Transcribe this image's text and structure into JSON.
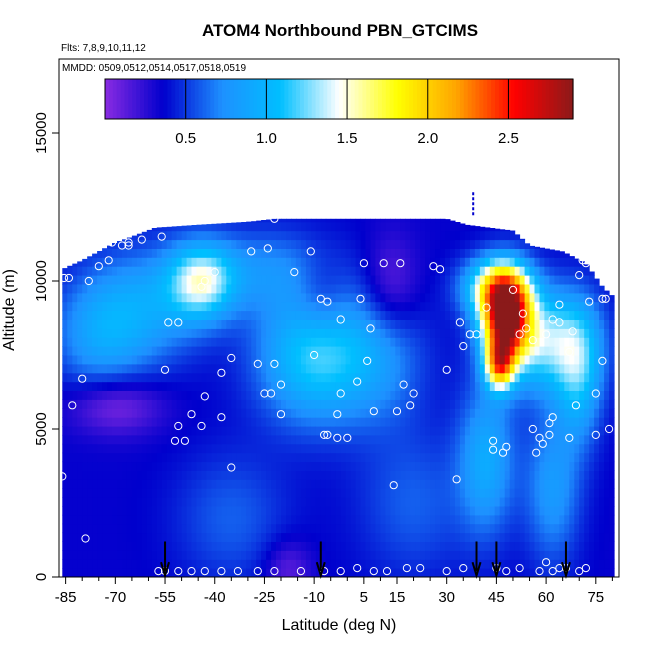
{
  "chart_data": {
    "type": "heatmap",
    "title": "ATOM4 Northbound PBN_GTCIMS",
    "flights_note": "Flts: 7,8,9,10,11,12",
    "dates_note": "MMDD: 0509,0512,0514,0517,0518,0519",
    "xlabel": "Latitude (deg N)",
    "ylabel": "Altitude (m)",
    "xlim": [
      -87,
      82
    ],
    "ylim": [
      0,
      17500
    ],
    "x_ticks": [
      -85,
      -70,
      -55,
      -40,
      -25,
      -10,
      5,
      15,
      30,
      45,
      60,
      75
    ],
    "x_tick_labels": [
      "-85",
      "-70",
      "-55",
      "-40",
      "-25",
      "-10",
      "5",
      "15",
      "30",
      "45",
      "60",
      "75"
    ],
    "x_minor_ticks": [
      -80,
      -75,
      -65,
      -60,
      -50,
      -45,
      -35,
      -30,
      -20,
      -15,
      -5,
      0,
      10,
      20,
      25,
      35,
      40,
      50,
      55,
      65,
      70,
      80
    ],
    "y_ticks": [
      0,
      5000,
      10000,
      15000
    ],
    "y_tick_labels": [
      "0",
      "5000",
      "10000",
      "15000"
    ],
    "colorbar": {
      "min": 0.0,
      "max": 2.9,
      "ticks": [
        0.5,
        1.0,
        1.5,
        2.0,
        2.5
      ],
      "tick_labels": [
        "0.5",
        "1.0",
        "1.5",
        "2.0",
        "2.5"
      ],
      "colors": [
        "#8a2be2",
        "#0000cd",
        "#1e90ff",
        "#00bfff",
        "#ffffff",
        "#ffff00",
        "#ffa500",
        "#ff0000",
        "#8b1a1a"
      ]
    },
    "background_value": 0.35,
    "envelope": [
      {
        "lat": -86,
        "top": 10400
      },
      {
        "lat": -80,
        "top": 10700
      },
      {
        "lat": -75,
        "top": 11000
      },
      {
        "lat": -70,
        "top": 11300
      },
      {
        "lat": -65,
        "top": 11500
      },
      {
        "lat": -58,
        "top": 11800
      },
      {
        "lat": -45,
        "top": 11900
      },
      {
        "lat": -30,
        "top": 12000
      },
      {
        "lat": -22,
        "top": 12100
      },
      {
        "lat": -10,
        "top": 12100
      },
      {
        "lat": 10,
        "top": 12100
      },
      {
        "lat": 30,
        "top": 12100
      },
      {
        "lat": 36,
        "top": 11900
      },
      {
        "lat": 50,
        "top": 11700
      },
      {
        "lat": 55,
        "top": 11200
      },
      {
        "lat": 65,
        "top": 11000
      },
      {
        "lat": 72,
        "top": 10600
      },
      {
        "lat": 77,
        "top": 9800
      },
      {
        "lat": 80,
        "top": 9500
      }
    ],
    "blobs": [
      {
        "lat": 48,
        "alt": 8800,
        "sx": 5,
        "sy": 1000,
        "amp": 2.3
      },
      {
        "lat": 46,
        "alt": 7200,
        "sx": 3,
        "sy": 600,
        "amp": 1.4
      },
      {
        "lat": 45,
        "alt": 9800,
        "sx": 7,
        "sy": 700,
        "amp": 1.1
      },
      {
        "lat": 60,
        "alt": 8000,
        "sx": 10,
        "sy": 1200,
        "amp": 0.9
      },
      {
        "lat": 70,
        "alt": 6800,
        "sx": 5,
        "sy": 1600,
        "amp": 0.6
      },
      {
        "lat": 42,
        "alt": 4000,
        "sx": 6,
        "sy": 1800,
        "amp": 0.55
      },
      {
        "lat": 62,
        "alt": 3000,
        "sx": 6,
        "sy": 1800,
        "amp": 0.45
      },
      {
        "lat": -10,
        "alt": 7500,
        "sx": 12,
        "sy": 1600,
        "amp": 0.8
      },
      {
        "lat": -44,
        "alt": 10000,
        "sx": 7,
        "sy": 900,
        "amp": 0.9
      },
      {
        "lat": -60,
        "alt": 9200,
        "sx": 12,
        "sy": 1400,
        "amp": 0.45
      },
      {
        "lat": -75,
        "alt": 8200,
        "sx": 10,
        "sy": 1400,
        "amp": 0.45
      },
      {
        "lat": -25,
        "alt": 10400,
        "sx": 15,
        "sy": 1000,
        "amp": 0.35
      },
      {
        "lat": 10,
        "alt": 7500,
        "sx": 10,
        "sy": 1600,
        "amp": 0.35
      },
      {
        "lat": -35,
        "alt": 2000,
        "sx": 12,
        "sy": 1600,
        "amp": 0.25
      },
      {
        "lat": 20,
        "alt": 2500,
        "sx": 12,
        "sy": 1800,
        "amp": 0.25
      },
      {
        "lat": -70,
        "alt": 5800,
        "sx": 10,
        "sy": 700,
        "amp": -0.35
      },
      {
        "lat": 13,
        "alt": 9800,
        "sx": 6,
        "sy": 1200,
        "amp": -0.3
      },
      {
        "lat": -8,
        "alt": 9500,
        "sx": 6,
        "sy": 1000,
        "amp": -0.25
      },
      {
        "lat": -18,
        "alt": 300,
        "sx": 5,
        "sy": 700,
        "amp": -0.25
      }
    ],
    "samples": [
      [
        -85.5,
        10100
      ],
      [
        -84,
        10100
      ],
      [
        -75,
        10500
      ],
      [
        -72,
        10700
      ],
      [
        -68,
        11200
      ],
      [
        -66,
        11300
      ],
      [
        -62,
        11400
      ],
      [
        -56,
        11500
      ],
      [
        -83,
        5800
      ],
      [
        -80,
        6700
      ],
      [
        -55,
        7000
      ],
      [
        -54,
        8600
      ],
      [
        -51,
        8600
      ],
      [
        -52,
        4600
      ],
      [
        -51,
        5100
      ],
      [
        -49,
        4600
      ],
      [
        -47,
        5500
      ],
      [
        -44,
        5100
      ],
      [
        -43,
        6100
      ],
      [
        -44,
        9800
      ],
      [
        -43,
        10000
      ],
      [
        -40,
        10300
      ],
      [
        -38,
        6900
      ],
      [
        -35,
        7400
      ],
      [
        -38,
        5400
      ],
      [
        -27,
        7200
      ],
      [
        -25,
        6200
      ],
      [
        -23,
        6200
      ],
      [
        -22,
        7200
      ],
      [
        -20,
        5500
      ],
      [
        -20,
        6500
      ],
      [
        -22,
        12100
      ],
      [
        -29,
        11000
      ],
      [
        -24,
        11100
      ],
      [
        -16,
        10300
      ],
      [
        -11,
        11000
      ],
      [
        -10,
        7500
      ],
      [
        -8,
        9400
      ],
      [
        -6,
        9300
      ],
      [
        -7,
        4800
      ],
      [
        -6,
        4800
      ],
      [
        -3,
        4700
      ],
      [
        -3,
        5500
      ],
      [
        -2,
        6200
      ],
      [
        -2,
        8700
      ],
      [
        0,
        4700
      ],
      [
        3,
        6600
      ],
      [
        4,
        9400
      ],
      [
        5,
        10600
      ],
      [
        6,
        7300
      ],
      [
        7,
        8400
      ],
      [
        8,
        5600
      ],
      [
        11,
        10600
      ],
      [
        14,
        3100
      ],
      [
        15,
        5600
      ],
      [
        16,
        10600
      ],
      [
        17,
        6500
      ],
      [
        19,
        5800
      ],
      [
        20,
        6200
      ],
      [
        26,
        10500
      ],
      [
        28,
        10400
      ],
      [
        30,
        7000
      ],
      [
        33,
        3300
      ],
      [
        34,
        8600
      ],
      [
        35,
        7800
      ],
      [
        37,
        8200
      ],
      [
        39,
        8200
      ],
      [
        42,
        9100
      ],
      [
        44,
        4300
      ],
      [
        44,
        4600
      ],
      [
        47,
        4200
      ],
      [
        48,
        4400
      ],
      [
        50,
        9700
      ],
      [
        52,
        8200
      ],
      [
        53,
        8900
      ],
      [
        54,
        8400
      ],
      [
        56,
        8000
      ],
      [
        56,
        5000
      ],
      [
        57,
        4200
      ],
      [
        58,
        4700
      ],
      [
        59,
        4500
      ],
      [
        60,
        8200
      ],
      [
        61,
        5200
      ],
      [
        61,
        4800
      ],
      [
        62,
        5400
      ],
      [
        62,
        8700
      ],
      [
        64,
        8600
      ],
      [
        64,
        9200
      ],
      [
        67,
        7600
      ],
      [
        67,
        4700
      ],
      [
        69,
        5800
      ],
      [
        70,
        10200
      ],
      [
        71,
        10700
      ],
      [
        72,
        10600
      ],
      [
        73,
        9300
      ],
      [
        75,
        4800
      ],
      [
        75,
        6200
      ],
      [
        77,
        7300
      ],
      [
        77,
        9400
      ],
      [
        78,
        9400
      ],
      [
        79,
        5000
      ],
      [
        -79,
        1300
      ],
      [
        -86,
        3400
      ],
      [
        -57,
        200
      ],
      [
        -55,
        200
      ],
      [
        -51,
        200
      ],
      [
        -47,
        200
      ],
      [
        -43,
        200
      ],
      [
        -38,
        200
      ],
      [
        -33,
        200
      ],
      [
        -27,
        200
      ],
      [
        -22,
        200
      ],
      [
        -14,
        200
      ],
      [
        -7,
        200
      ],
      [
        -2,
        200
      ],
      [
        3,
        300
      ],
      [
        8,
        200
      ],
      [
        12,
        200
      ],
      [
        18,
        300
      ],
      [
        22,
        300
      ],
      [
        30,
        200
      ],
      [
        35,
        300
      ],
      [
        45,
        300
      ],
      [
        48,
        200
      ],
      [
        52,
        300
      ],
      [
        58,
        200
      ],
      [
        62,
        200
      ],
      [
        66,
        300
      ],
      [
        70,
        200
      ],
      [
        72,
        300
      ],
      [
        60,
        500
      ],
      [
        64,
        300
      ],
      [
        -66,
        11200
      ],
      [
        -35,
        3700
      ],
      [
        -78,
        10000
      ],
      [
        68,
        8300
      ],
      [
        -71,
        11300
      ],
      [
        -32,
        12200
      ]
    ],
    "arrow_lats": [
      -55,
      -8,
      39,
      45,
      66
    ],
    "top_marker_lat": 38
  }
}
